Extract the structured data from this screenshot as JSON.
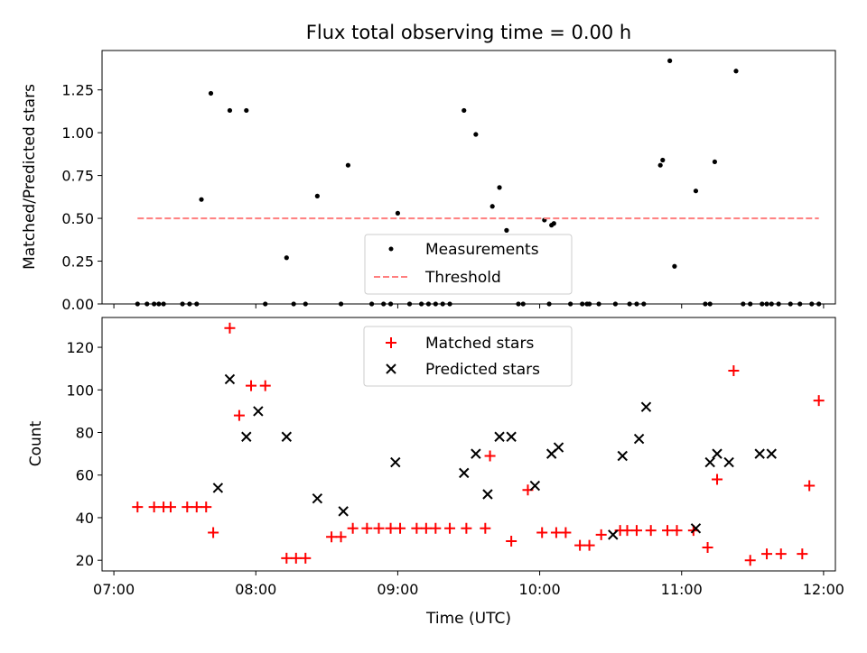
{
  "chart_data": [
    {
      "type": "scatter",
      "title": "Flux total observing time = 0.00 h",
      "xlabel": "",
      "ylabel": "Matched/Predicted stars",
      "ylim": [
        0,
        1.48
      ],
      "xlim": [
        "07:00",
        "12:00"
      ],
      "yticks": [
        "0.00",
        "0.25",
        "0.50",
        "0.75",
        "1.00",
        "1.25"
      ],
      "xtick_labels": [],
      "grid": false,
      "legend_position": "lower-center",
      "series": [
        {
          "name": "Measurements",
          "marker": "dot",
          "color": "#000000",
          "x": [
            "07:10",
            "07:14",
            "07:17",
            "07:19",
            "07:21",
            "07:29",
            "07:32",
            "07:35",
            "07:37",
            "07:41",
            "07:49",
            "07:56",
            "08:04",
            "08:13",
            "08:16",
            "08:21",
            "08:26",
            "08:36",
            "08:39",
            "08:49",
            "08:54",
            "08:57",
            "09:00",
            "09:05",
            "09:10",
            "09:13",
            "09:16",
            "09:19",
            "09:22",
            "09:28",
            "09:33",
            "09:40",
            "09:43",
            "09:46",
            "09:51",
            "09:53",
            "10:02",
            "10:04",
            "10:05",
            "10:06",
            "10:13",
            "10:18",
            "10:20",
            "10:21",
            "10:25",
            "10:32",
            "10:38",
            "10:41",
            "10:44",
            "10:51",
            "10:52",
            "10:55",
            "10:57",
            "11:06",
            "11:10",
            "11:12",
            "11:14",
            "11:23",
            "11:26",
            "11:29",
            "11:34",
            "11:36",
            "11:38",
            "11:41",
            "11:46",
            "11:50",
            "11:55",
            "11:58"
          ],
          "y": [
            0,
            0,
            0,
            0,
            0,
            0,
            0,
            0,
            0.61,
            1.23,
            1.13,
            1.13,
            0,
            0.27,
            0,
            0,
            0.63,
            0,
            0.81,
            0,
            0,
            0,
            0.53,
            0,
            0,
            0,
            0,
            0,
            0,
            1.13,
            0.99,
            0.57,
            0.68,
            0.43,
            0,
            0,
            0.49,
            0,
            0.46,
            0.47,
            0,
            0,
            0,
            0,
            0,
            0,
            0,
            0,
            0,
            0.81,
            0.84,
            1.42,
            0.22,
            0.66,
            0,
            0,
            0.83,
            1.36,
            0,
            0,
            0,
            0,
            0,
            0,
            0,
            0,
            0,
            0
          ]
        },
        {
          "name": "Threshold",
          "marker": "dashed-line",
          "color": "#ff7f7f",
          "x": [
            "07:10",
            "11:58"
          ],
          "y": [
            0.5,
            0.5
          ]
        }
      ]
    },
    {
      "type": "scatter",
      "title": "",
      "xlabel": "Time (UTC)",
      "ylabel": "Count",
      "ylim": [
        15,
        134
      ],
      "xlim": [
        "07:00",
        "12:00"
      ],
      "yticks": [
        "20",
        "40",
        "60",
        "80",
        "100",
        "120"
      ],
      "xtick_labels": [
        "07:00",
        "08:00",
        "09:00",
        "10:00",
        "11:00",
        "12:00"
      ],
      "grid": false,
      "legend_position": "top-center",
      "series": [
        {
          "name": "Matched stars",
          "marker": "plus",
          "color": "#ff0000",
          "x": [
            "07:10",
            "07:17",
            "07:21",
            "07:24",
            "07:31",
            "07:35",
            "07:39",
            "07:42",
            "07:49",
            "07:53",
            "07:58",
            "08:04",
            "08:13",
            "08:17",
            "08:21",
            "08:32",
            "08:36",
            "08:41",
            "08:47",
            "08:52",
            "08:57",
            "09:01",
            "09:08",
            "09:12",
            "09:16",
            "09:22",
            "09:29",
            "09:37",
            "09:39",
            "09:48",
            "09:55",
            "10:01",
            "10:07",
            "10:11",
            "10:17",
            "10:21",
            "10:26",
            "10:34",
            "10:37",
            "10:41",
            "10:47",
            "10:54",
            "10:58",
            "11:05",
            "11:11",
            "11:15",
            "11:22",
            "11:29",
            "11:36",
            "11:42",
            "11:51",
            "11:54",
            "11:58"
          ],
          "y": [
            45,
            45,
            45,
            45,
            45,
            45,
            45,
            33,
            129,
            88,
            102,
            102,
            21,
            21,
            21,
            31,
            31,
            35,
            35,
            35,
            35,
            35,
            35,
            35,
            35,
            35,
            35,
            35,
            69,
            29,
            53,
            33,
            33,
            33,
            27,
            27,
            32,
            34,
            34,
            34,
            34,
            34,
            34,
            34,
            26,
            58,
            109,
            20,
            23,
            23,
            23,
            55,
            95
          ]
        },
        {
          "name": "Predicted stars",
          "marker": "x",
          "color": "#000000",
          "x": [
            "07:44",
            "07:49",
            "07:56",
            "08:01",
            "08:13",
            "08:26",
            "08:37",
            "08:59",
            "09:28",
            "09:33",
            "09:38",
            "09:43",
            "09:48",
            "09:58",
            "10:05",
            "10:08",
            "10:31",
            "10:35",
            "10:42",
            "10:45",
            "11:06",
            "11:12",
            "11:15",
            "11:20",
            "11:33",
            "11:38"
          ],
          "y": [
            54,
            105,
            78,
            90,
            78,
            49,
            43,
            66,
            61,
            70,
            51,
            78,
            78,
            55,
            70,
            73,
            32,
            69,
            77,
            92,
            35,
            66,
            70,
            66,
            70,
            70
          ]
        }
      ]
    }
  ]
}
